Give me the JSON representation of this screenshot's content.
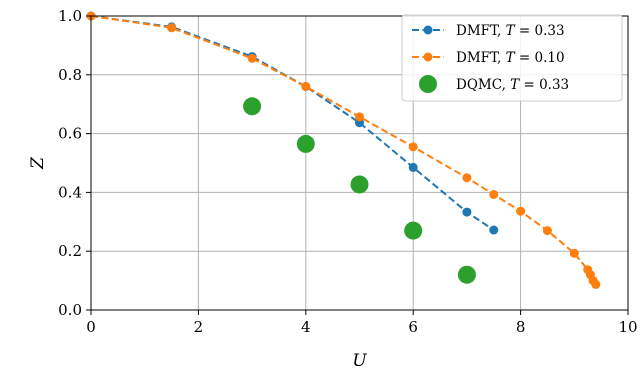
{
  "chart_data": {
    "type": "line",
    "title": "",
    "xlabel": "U",
    "ylabel": "Z",
    "xlim": [
      0,
      10
    ],
    "ylim": [
      0.0,
      1.0
    ],
    "xticks": [
      0,
      2,
      4,
      6,
      8,
      10
    ],
    "yticks": [
      0.0,
      0.2,
      0.4,
      0.6,
      0.8,
      1.0
    ],
    "xtick_labels": [
      "0",
      "2",
      "4",
      "6",
      "8",
      "10"
    ],
    "ytick_labels": [
      "0.0",
      "0.2",
      "0.4",
      "0.6",
      "0.8",
      "1.0"
    ],
    "grid": true,
    "legend_position": "top-right",
    "series": [
      {
        "name": "DMFT, T = 0.33",
        "legend_prefix": "DMFT, ",
        "legend_var": "T",
        "legend_value": " = 0.33",
        "style": "dashed-line-markers",
        "color": "#1f77b4",
        "x": [
          0,
          1.5,
          3,
          4,
          5,
          6,
          7,
          7.5
        ],
        "y": [
          1.0,
          0.963,
          0.862,
          0.76,
          0.637,
          0.485,
          0.333,
          0.272
        ]
      },
      {
        "name": "DMFT, T = 0.10",
        "legend_prefix": "DMFT, ",
        "legend_var": "T",
        "legend_value": " = 0.10",
        "style": "dashed-line-markers",
        "color": "#ff7f0e",
        "x": [
          0,
          1.5,
          3,
          4,
          5,
          6,
          7,
          7.5,
          8,
          8.5,
          9,
          9.25,
          9.3,
          9.35,
          9.4
        ],
        "y": [
          1.0,
          0.96,
          0.856,
          0.76,
          0.657,
          0.555,
          0.45,
          0.393,
          0.336,
          0.27,
          0.193,
          0.137,
          0.12,
          0.1,
          0.087
        ]
      },
      {
        "name": "DQMC, T = 0.33",
        "legend_prefix": "DQMC, ",
        "legend_var": "T",
        "legend_value": " = 0.33",
        "style": "markers",
        "color": "#2ca02c",
        "x": [
          3,
          4,
          5,
          6,
          7
        ],
        "y": [
          0.693,
          0.565,
          0.427,
          0.27,
          0.12
        ]
      }
    ]
  }
}
